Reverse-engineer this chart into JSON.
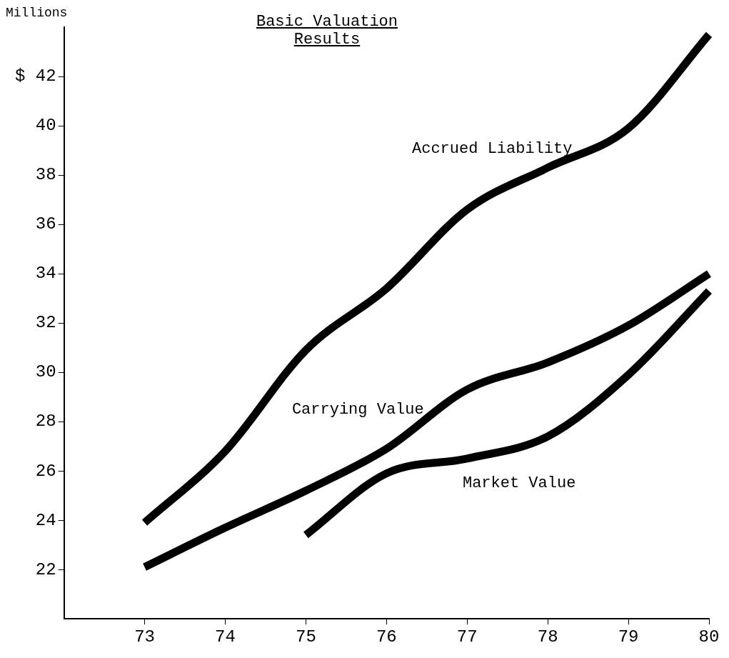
{
  "chart_data": {
    "type": "line",
    "title": "Basic Valuation Results",
    "ylabel": "Millions",
    "xlim": [
      72,
      80
    ],
    "xticks": [
      73,
      74,
      75,
      76,
      77,
      78,
      79,
      80
    ],
    "ylim": [
      20,
      44
    ],
    "yticks": [
      22,
      24,
      26,
      28,
      30,
      32,
      34,
      36,
      38,
      40,
      {
        "value": 42,
        "label": "$ 42"
      }
    ],
    "grid": false,
    "legend": false,
    "marker": "none",
    "line_style": "solid",
    "series": [
      {
        "name": "Accrued Liability",
        "color": "#000000",
        "x": [
          73,
          74,
          75,
          76,
          77,
          78,
          79,
          80
        ],
        "values": [
          23.9,
          26.8,
          30.9,
          33.4,
          36.6,
          38.3,
          39.9,
          43.7
        ]
      },
      {
        "name": "Carrying Value",
        "color": "#000000",
        "x": [
          73,
          74,
          75,
          76,
          77,
          78,
          79,
          80
        ],
        "values": [
          22.1,
          23.7,
          25.2,
          26.9,
          29.3,
          30.4,
          31.9,
          34.0
        ]
      },
      {
        "name": "Market Value",
        "color": "#000000",
        "x": [
          75,
          76,
          77,
          78,
          79,
          80
        ],
        "values": [
          23.4,
          25.9,
          26.5,
          27.4,
          29.9,
          33.3
        ]
      }
    ]
  }
}
